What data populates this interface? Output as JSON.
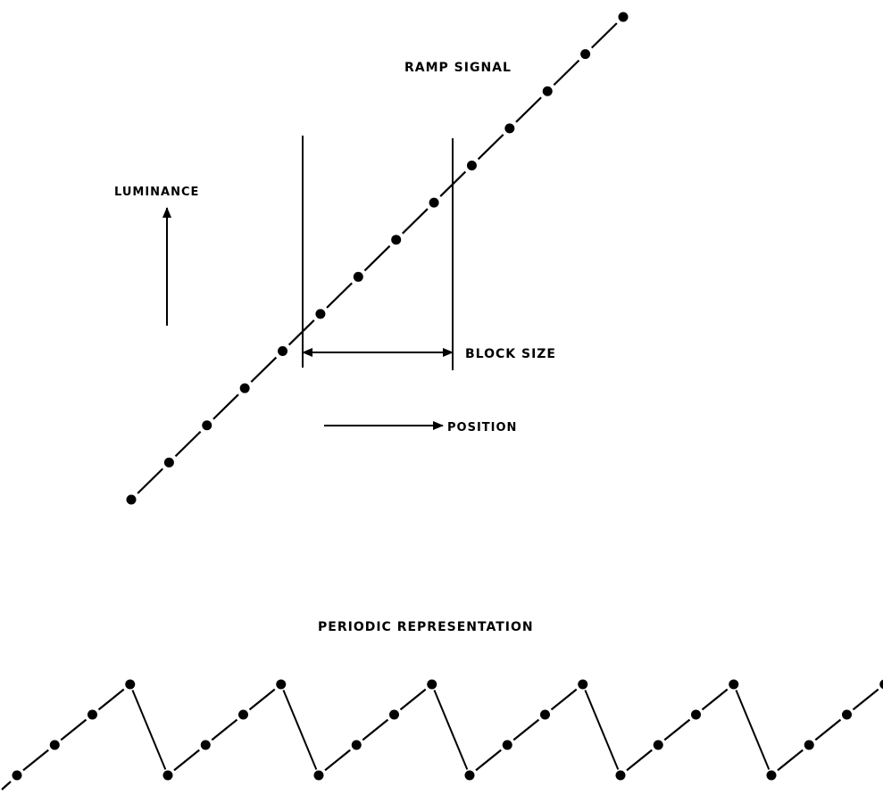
{
  "labels": {
    "ramp_signal": "RAMP SIGNAL",
    "luminance": "LUMINANCE",
    "block_size": "BLOCK SIZE",
    "position": "POSITION",
    "periodic_representation": "PERIODIC REPRESENTATION"
  },
  "colors": {
    "ink": "#000000",
    "background": "#ffffff"
  }
}
